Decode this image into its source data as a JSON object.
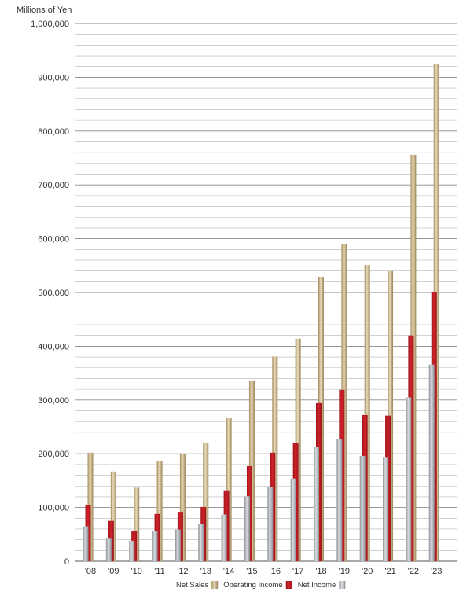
{
  "chart_data": {
    "type": "bar",
    "ylabel": "Millions of Yen",
    "ylim": [
      0,
      1000000
    ],
    "ytick_values": [
      0,
      100000,
      200000,
      300000,
      400000,
      500000,
      600000,
      700000,
      800000,
      900000,
      1000000
    ],
    "ytick_labels": [
      "0",
      "100,000",
      "200,000",
      "300,000",
      "400,000",
      "500,000",
      "600,000",
      "700,000",
      "800,000",
      "900,000",
      "1,000,000"
    ],
    "grid": true,
    "legend_position": "bottom",
    "categories": [
      "'08",
      "'09",
      "'10",
      "'11",
      "'12",
      "'13",
      "'14",
      "'15",
      "'16",
      "'17",
      "'18",
      "'19",
      "'20",
      "'21",
      "'22",
      "'23"
    ],
    "series": [
      {
        "name": "Net Sales",
        "color": "#c2ae84",
        "values": [
          202000,
          167000,
          137000,
          186000,
          200000,
          220000,
          266000,
          335000,
          381000,
          414000,
          528000,
          590000,
          551000,
          540000,
          756000,
          924000
        ]
      },
      {
        "name": "Operating Income",
        "color": "#b81c22",
        "values": [
          104000,
          75000,
          57000,
          88000,
          92000,
          101000,
          132000,
          177000,
          202000,
          220000,
          294000,
          319000,
          272000,
          271000,
          420000,
          500000
        ]
      },
      {
        "name": "Net Income",
        "color": "#a9adb2",
        "values": [
          65000,
          42000,
          38000,
          56000,
          59000,
          69000,
          87000,
          121000,
          138000,
          154000,
          212000,
          227000,
          196000,
          194000,
          305000,
          366000
        ]
      }
    ]
  }
}
